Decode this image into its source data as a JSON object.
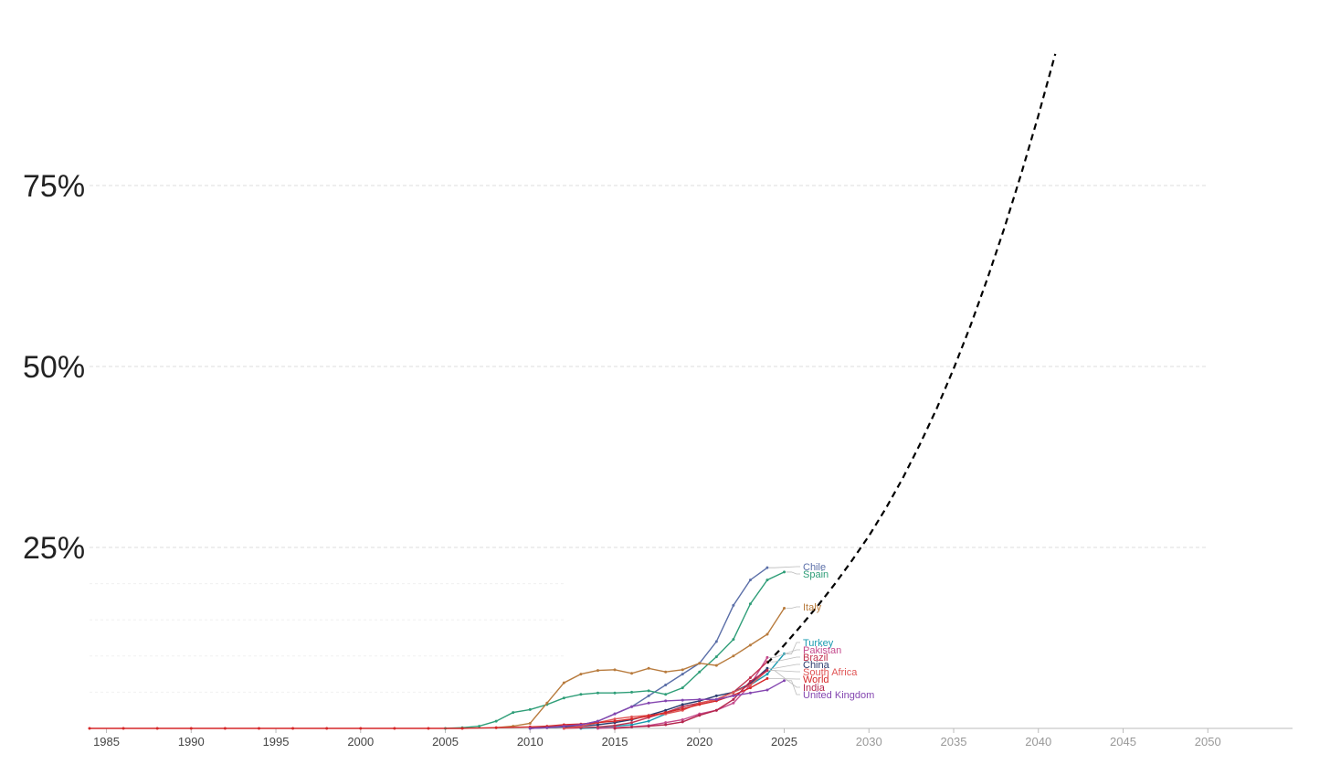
{
  "chart_data": {
    "type": "line",
    "title": "",
    "xlabel": "",
    "ylabel": "",
    "xlim": [
      1984,
      2055
    ],
    "ylim": [
      0,
      100
    ],
    "y_ticks": [
      {
        "value": 25,
        "label": "25%"
      },
      {
        "value": 50,
        "label": "50%"
      },
      {
        "value": 75,
        "label": "75%"
      }
    ],
    "x_ticks_observed": [
      "1985",
      "1990",
      "1995",
      "2000",
      "2005",
      "2010",
      "2015",
      "2020",
      "2025"
    ],
    "x_ticks_projected": [
      "2030",
      "2035",
      "2040",
      "2045",
      "2050"
    ],
    "grid": true,
    "legend_placement": "right-end-of-lines",
    "series": [
      {
        "name": "Chile",
        "color": "#5b6fa8",
        "x": [
          2010,
          2011,
          2012,
          2013,
          2014,
          2015,
          2016,
          2017,
          2018,
          2019,
          2020,
          2021,
          2022,
          2023,
          2024
        ],
        "y": [
          0.1,
          0.2,
          0.3,
          0.5,
          1.0,
          2.0,
          3.0,
          4.5,
          6.0,
          7.5,
          9.0,
          12.0,
          17.0,
          20.5,
          22.2
        ]
      },
      {
        "name": "Spain",
        "color": "#2f9e78",
        "x": [
          2005,
          2006,
          2007,
          2008,
          2009,
          2010,
          2011,
          2012,
          2013,
          2014,
          2015,
          2016,
          2017,
          2018,
          2019,
          2020,
          2021,
          2022,
          2023,
          2024,
          2025
        ],
        "y": [
          0,
          0.1,
          0.3,
          1.0,
          2.2,
          2.6,
          3.3,
          4.2,
          4.7,
          4.9,
          4.9,
          5.0,
          5.2,
          4.7,
          5.6,
          7.8,
          9.9,
          12.3,
          17.2,
          20.5,
          21.6
        ]
      },
      {
        "name": "Italy",
        "color": "#b87b3d",
        "x": [
          2008,
          2009,
          2010,
          2011,
          2012,
          2013,
          2014,
          2015,
          2016,
          2017,
          2018,
          2019,
          2020,
          2021,
          2022,
          2023,
          2024,
          2025
        ],
        "y": [
          0.1,
          0.3,
          0.7,
          3.5,
          6.3,
          7.5,
          8.0,
          8.1,
          7.6,
          8.3,
          7.8,
          8.1,
          9.0,
          8.7,
          10.0,
          11.5,
          13.0,
          16.6
        ]
      },
      {
        "name": "Turkey",
        "color": "#1a9bb0",
        "x": [
          2013,
          2014,
          2015,
          2016,
          2017,
          2018,
          2019,
          2020,
          2021,
          2022,
          2023,
          2024,
          2025
        ],
        "y": [
          0,
          0.1,
          0.3,
          0.5,
          1.0,
          2.0,
          3.0,
          3.5,
          4.0,
          5.0,
          6.0,
          7.5,
          10.3
        ]
      },
      {
        "name": "Pakistan",
        "color": "#c44a8c",
        "x": [
          2014,
          2015,
          2016,
          2017,
          2018,
          2019,
          2020,
          2021,
          2022,
          2023,
          2024
        ],
        "y": [
          0,
          0.1,
          0.2,
          0.4,
          0.8,
          1.2,
          2.0,
          2.5,
          3.5,
          6.0,
          9.8
        ]
      },
      {
        "name": "Brazil",
        "color": "#c2314f",
        "x": [
          2012,
          2013,
          2014,
          2015,
          2016,
          2017,
          2018,
          2019,
          2020,
          2021,
          2022,
          2023,
          2024
        ],
        "y": [
          0,
          0.1,
          0.2,
          0.4,
          0.8,
          1.5,
          2.2,
          3.0,
          3.5,
          4.0,
          5.0,
          7.0,
          9.2
        ]
      },
      {
        "name": "China",
        "color": "#2a3b6e",
        "x": [
          2010,
          2011,
          2012,
          2013,
          2014,
          2015,
          2016,
          2017,
          2018,
          2019,
          2020,
          2021,
          2022,
          2023,
          2024
        ],
        "y": [
          0,
          0.1,
          0.2,
          0.3,
          0.5,
          0.8,
          1.2,
          1.8,
          2.5,
          3.3,
          3.8,
          4.5,
          5.0,
          6.2,
          8.3
        ]
      },
      {
        "name": "South Africa",
        "color": "#e05555",
        "x": [
          2012,
          2013,
          2014,
          2015,
          2016,
          2017,
          2018,
          2019,
          2020,
          2021,
          2022,
          2023,
          2024
        ],
        "y": [
          0,
          0.3,
          0.8,
          1.3,
          1.6,
          1.8,
          2.0,
          2.5,
          3.5,
          4.0,
          5.0,
          6.0,
          8.0
        ]
      },
      {
        "name": "World",
        "color": "#d62728",
        "x": [
          1984,
          1986,
          1988,
          1990,
          1992,
          1994,
          1996,
          1998,
          2000,
          2002,
          2004,
          2006,
          2008,
          2010,
          2011,
          2012,
          2013,
          2014,
          2015,
          2016,
          2017,
          2018,
          2019,
          2020,
          2021,
          2022,
          2023,
          2024
        ],
        "y": [
          0,
          0,
          0,
          0,
          0,
          0,
          0,
          0,
          0,
          0,
          0,
          0,
          0.1,
          0.2,
          0.3,
          0.5,
          0.6,
          0.8,
          1.0,
          1.3,
          1.7,
          2.2,
          2.7,
          3.3,
          3.8,
          4.6,
          5.6,
          6.9
        ]
      },
      {
        "name": "India",
        "color": "#b5264d",
        "x": [
          2015,
          2016,
          2017,
          2018,
          2019,
          2020,
          2021,
          2022,
          2023,
          2024
        ],
        "y": [
          0,
          0.2,
          0.3,
          0.5,
          0.9,
          1.8,
          2.5,
          4.0,
          6.5,
          8.0
        ]
      },
      {
        "name": "United Kingdom",
        "color": "#8446b0",
        "x": [
          2010,
          2011,
          2012,
          2013,
          2014,
          2015,
          2016,
          2017,
          2018,
          2019,
          2020,
          2021,
          2022,
          2023,
          2024,
          2025
        ],
        "y": [
          0,
          0.1,
          0.3,
          0.5,
          1.0,
          2.0,
          3.0,
          3.5,
          3.8,
          3.9,
          4.0,
          4.0,
          4.5,
          4.9,
          5.3,
          6.6
        ]
      }
    ],
    "projection": {
      "color": "#000000",
      "style": "dashed",
      "x": [
        2024,
        2025,
        2026,
        2027,
        2028,
        2029,
        2030,
        2031,
        2032,
        2033,
        2034,
        2035,
        2036,
        2037,
        2038,
        2039,
        2040,
        2041
      ],
      "y": [
        9.0,
        11.5,
        14.2,
        17.0,
        20.0,
        23.2,
        26.6,
        30.4,
        34.6,
        39.2,
        44.2,
        49.7,
        55.7,
        62.2,
        69.2,
        76.7,
        84.7,
        93.2
      ]
    }
  }
}
